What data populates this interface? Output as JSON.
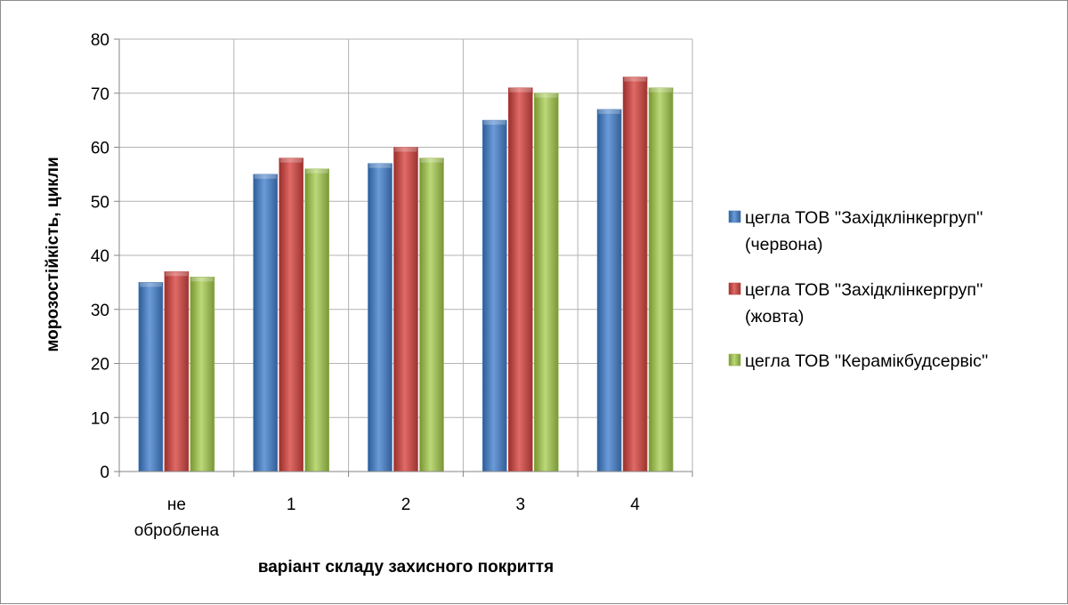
{
  "chart_data": {
    "type": "bar",
    "title": "",
    "xlabel": "варіант складу захисного покриття",
    "ylabel": "морозостійкість, цикли",
    "ylim": [
      0,
      80
    ],
    "ytick_step": 10,
    "grid": true,
    "legend_position": "right",
    "categories": [
      [
        "не",
        "оброблена"
      ],
      [
        "1"
      ],
      [
        "2"
      ],
      [
        "3"
      ],
      [
        "4"
      ]
    ],
    "series": [
      {
        "name_lines": [
          "цегла ТОВ ''Західклінкергруп''",
          "(червона)"
        ],
        "color": "#4a7ebb",
        "values": [
          35,
          55,
          57,
          65,
          67
        ]
      },
      {
        "name_lines": [
          "цегла ТОВ ''Західклінкергруп''",
          "(жовта)"
        ],
        "color": "#be4b48",
        "values": [
          37,
          58,
          60,
          71,
          73
        ]
      },
      {
        "name_lines": [
          "цегла ТОВ ''Керамікбудсервіс''"
        ],
        "color": "#98b954",
        "values": [
          36,
          56,
          58,
          70,
          71
        ]
      }
    ]
  }
}
